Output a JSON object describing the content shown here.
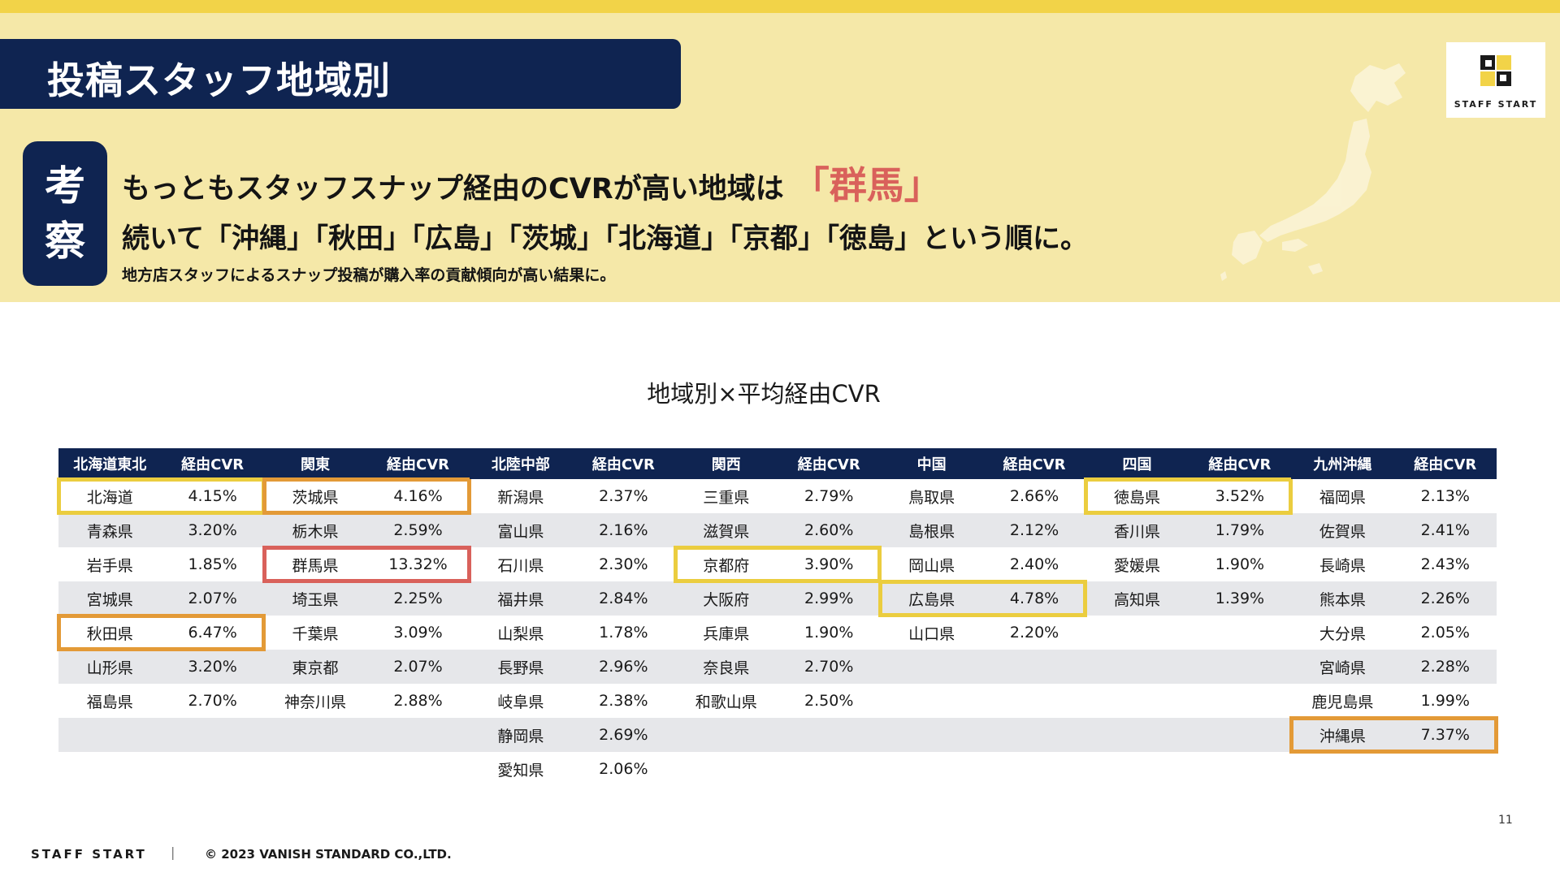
{
  "header": {
    "title": "投稿スタッフ地域別",
    "badge_char1": "考",
    "badge_char2": "察",
    "headline1": "もっともスタッフスナップ経由のCVRが高い地域は",
    "headline1_accent": "「群馬」",
    "headline2": "続いて「沖縄」「秋田」「広島」「茨城」「北海道」「京都」「徳島」という順に。",
    "headline3": "地方店スタッフによるスナップ投稿が購入率の貢献傾向が高い結果に。"
  },
  "logo": {
    "text": "STAFF START"
  },
  "table": {
    "title": "地域別×平均経由CVR",
    "colors": {
      "header": "#0f2451",
      "stripe": "#e6e7ea",
      "yellow": "#ebcd3f",
      "orange": "#e39a37",
      "red": "#d9615b"
    },
    "regions": [
      {
        "name": "北海道東北",
        "cvr_label": "経由CVR",
        "rows": [
          {
            "pref": "北海道",
            "cvr": "4.15%",
            "highlight": "yellow"
          },
          {
            "pref": "青森県",
            "cvr": "3.20%"
          },
          {
            "pref": "岩手県",
            "cvr": "1.85%"
          },
          {
            "pref": "宮城県",
            "cvr": "2.07%"
          },
          {
            "pref": "秋田県",
            "cvr": "6.47%",
            "highlight": "orange"
          },
          {
            "pref": "山形県",
            "cvr": "3.20%"
          },
          {
            "pref": "福島県",
            "cvr": "2.70%"
          }
        ]
      },
      {
        "name": "関東",
        "cvr_label": "経由CVR",
        "rows": [
          {
            "pref": "茨城県",
            "cvr": "4.16%",
            "highlight": "orange"
          },
          {
            "pref": "栃木県",
            "cvr": "2.59%"
          },
          {
            "pref": "群馬県",
            "cvr": "13.32%",
            "highlight": "red"
          },
          {
            "pref": "埼玉県",
            "cvr": "2.25%"
          },
          {
            "pref": "千葉県",
            "cvr": "3.09%"
          },
          {
            "pref": "東京都",
            "cvr": "2.07%"
          },
          {
            "pref": "神奈川県",
            "cvr": "2.88%"
          }
        ]
      },
      {
        "name": "北陸中部",
        "cvr_label": "経由CVR",
        "rows": [
          {
            "pref": "新潟県",
            "cvr": "2.37%"
          },
          {
            "pref": "富山県",
            "cvr": "2.16%"
          },
          {
            "pref": "石川県",
            "cvr": "2.30%"
          },
          {
            "pref": "福井県",
            "cvr": "2.84%"
          },
          {
            "pref": "山梨県",
            "cvr": "1.78%"
          },
          {
            "pref": "長野県",
            "cvr": "2.96%"
          },
          {
            "pref": "岐阜県",
            "cvr": "2.38%"
          },
          {
            "pref": "静岡県",
            "cvr": "2.69%"
          },
          {
            "pref": "愛知県",
            "cvr": "2.06%"
          }
        ]
      },
      {
        "name": "関西",
        "cvr_label": "経由CVR",
        "rows": [
          {
            "pref": "三重県",
            "cvr": "2.79%"
          },
          {
            "pref": "滋賀県",
            "cvr": "2.60%"
          },
          {
            "pref": "京都府",
            "cvr": "3.90%",
            "highlight": "yellow"
          },
          {
            "pref": "大阪府",
            "cvr": "2.99%"
          },
          {
            "pref": "兵庫県",
            "cvr": "1.90%"
          },
          {
            "pref": "奈良県",
            "cvr": "2.70%"
          },
          {
            "pref": "和歌山県",
            "cvr": "2.50%"
          }
        ]
      },
      {
        "name": "中国",
        "cvr_label": "経由CVR",
        "rows": [
          {
            "pref": "鳥取県",
            "cvr": "2.66%"
          },
          {
            "pref": "島根県",
            "cvr": "2.12%"
          },
          {
            "pref": "岡山県",
            "cvr": "2.40%"
          },
          {
            "pref": "広島県",
            "cvr": "4.78%",
            "highlight": "yellow"
          },
          {
            "pref": "山口県",
            "cvr": "2.20%"
          }
        ]
      },
      {
        "name": "四国",
        "cvr_label": "経由CVR",
        "rows": [
          {
            "pref": "徳島県",
            "cvr": "3.52%",
            "highlight": "yellow"
          },
          {
            "pref": "香川県",
            "cvr": "1.79%"
          },
          {
            "pref": "愛媛県",
            "cvr": "1.90%"
          },
          {
            "pref": "高知県",
            "cvr": "1.39%"
          }
        ]
      },
      {
        "name": "九州沖縄",
        "cvr_label": "経由CVR",
        "rows": [
          {
            "pref": "福岡県",
            "cvr": "2.13%"
          },
          {
            "pref": "佐賀県",
            "cvr": "2.41%"
          },
          {
            "pref": "長崎県",
            "cvr": "2.43%"
          },
          {
            "pref": "熊本県",
            "cvr": "2.26%"
          },
          {
            "pref": "大分県",
            "cvr": "2.05%"
          },
          {
            "pref": "宮崎県",
            "cvr": "2.28%"
          },
          {
            "pref": "鹿児島県",
            "cvr": "1.99%"
          },
          {
            "pref": "沖縄県",
            "cvr": "7.37%",
            "highlight": "orange"
          }
        ]
      }
    ]
  },
  "footer": {
    "page_number": "11",
    "brand": "STAFF START",
    "separator": "|",
    "copyright": "© 2023 VANISH STANDARD CO.,LTD."
  }
}
